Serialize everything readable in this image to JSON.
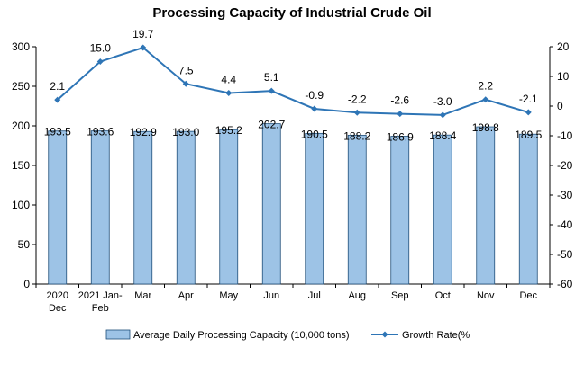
{
  "chart_data": {
    "type": "bar",
    "title": "Processing Capacity of Industrial Crude Oil",
    "categories": [
      [
        "2020",
        "Dec"
      ],
      [
        "2021 Jan-",
        "Feb"
      ],
      [
        "Mar"
      ],
      [
        "Apr"
      ],
      [
        "May"
      ],
      [
        "Jun"
      ],
      [
        "Jul"
      ],
      [
        "Aug"
      ],
      [
        "Sep"
      ],
      [
        "Oct"
      ],
      [
        "Nov"
      ],
      [
        "Dec"
      ]
    ],
    "bar_series": {
      "name": "Average Daily Processing Capacity (10,000 tons)",
      "values": [
        193.5,
        193.6,
        192.9,
        193.0,
        195.2,
        202.7,
        190.5,
        188.2,
        186.9,
        188.4,
        198.8,
        189.5
      ],
      "labels": [
        "193.5",
        "193.6",
        "192.9",
        "193.0",
        "195.2",
        "202.7",
        "190.5",
        "188.2",
        "186.9",
        "188.4",
        "198.8",
        "189.5"
      ],
      "color": "#9DC3E6",
      "border": "#1F4E79"
    },
    "line_series": {
      "name": "Growth Rate(%",
      "values": [
        2.1,
        15.0,
        19.7,
        7.5,
        4.4,
        5.1,
        -0.9,
        -2.2,
        -2.6,
        -3.0,
        2.2,
        -2.1
      ],
      "labels": [
        "2.1",
        "15.0",
        "19.7",
        "7.5",
        "4.4",
        "5.1",
        "-0.9",
        "-2.2",
        "-2.6",
        "-3.0",
        "2.2",
        "-2.1"
      ],
      "color": "#2E75B6"
    },
    "y_left": {
      "min": 0,
      "max": 300,
      "step": 50,
      "ticks": [
        "0",
        "50",
        "100",
        "150",
        "200",
        "250",
        "300"
      ]
    },
    "y_right": {
      "min": -60,
      "max": 20,
      "step": 10,
      "ticks": [
        "-60",
        "-50",
        "-40",
        "-30",
        "-20",
        "-10",
        "0",
        "10",
        "20"
      ]
    },
    "grid": false,
    "legend_position": "bottom"
  }
}
